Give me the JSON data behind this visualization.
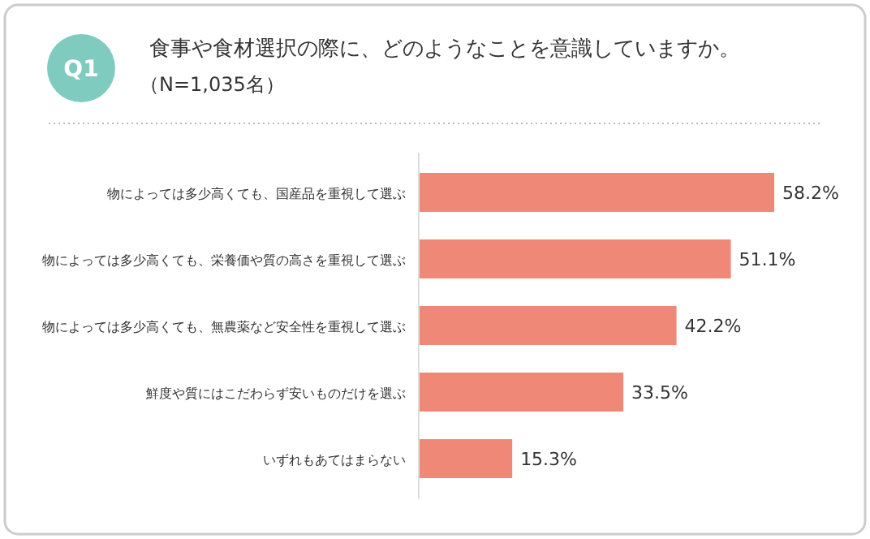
{
  "chart_data": {
    "type": "bar",
    "orientation": "horizontal",
    "title": "食事や食材選択の際に、どのようなことを意識していますか。",
    "subtitle": "（N=1,035名）",
    "annotations": [
      "Q1"
    ],
    "categories": [
      "物によっては多少高くても、国産品を重視して選ぶ",
      "物によっては多少高くても、栄養価や質の高さを重視して選ぶ",
      "物によっては多少高くても、無農薬など安全性を重視して選ぶ",
      "鮮度や質にはこだわらず安いものだけを選ぶ",
      "いずれもあてはまらない"
    ],
    "values": [
      58.2,
      51.1,
      42.2,
      33.5,
      15.3
    ],
    "value_labels": [
      "58.2%",
      "51.1%",
      "42.2%",
      "33.5%",
      "15.3%"
    ],
    "color": "#f08878"
  }
}
